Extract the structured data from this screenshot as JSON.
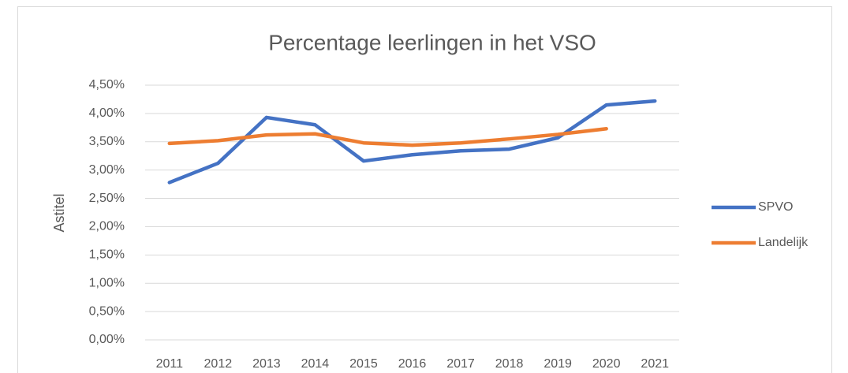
{
  "chart_data": {
    "type": "line",
    "title": "Percentage leerlingen in het VSO",
    "y_label": "Astitel",
    "categories": [
      "2011",
      "2012",
      "2013",
      "2014",
      "2015",
      "2016",
      "2017",
      "2018",
      "2019",
      "2020",
      "2021"
    ],
    "series": [
      {
        "name": "SPVO",
        "color": "#4472c4",
        "values": [
          2.78,
          3.12,
          3.93,
          3.8,
          3.16,
          3.27,
          3.34,
          3.37,
          3.57,
          4.15,
          4.22
        ]
      },
      {
        "name": "Landelijk",
        "color": "#ed7d31",
        "values": [
          3.47,
          3.52,
          3.62,
          3.64,
          3.48,
          3.44,
          3.48,
          3.55,
          3.63,
          3.73,
          null
        ]
      }
    ],
    "ylim": [
      0,
      4.5
    ],
    "yticks": [
      {
        "value": 0,
        "label": "0,00%"
      },
      {
        "value": 0.5,
        "label": "0,50%"
      },
      {
        "value": 1,
        "label": "1,00%"
      },
      {
        "value": 1.5,
        "label": "1,50%"
      },
      {
        "value": 2,
        "label": "2,00%"
      },
      {
        "value": 2.5,
        "label": "2,50%"
      },
      {
        "value": 3,
        "label": "3,00%"
      },
      {
        "value": 3.5,
        "label": "3,50%"
      },
      {
        "value": 4,
        "label": "4,00%"
      },
      {
        "value": 4.5,
        "label": "4,50%"
      }
    ],
    "grid": true,
    "legend": "right"
  }
}
